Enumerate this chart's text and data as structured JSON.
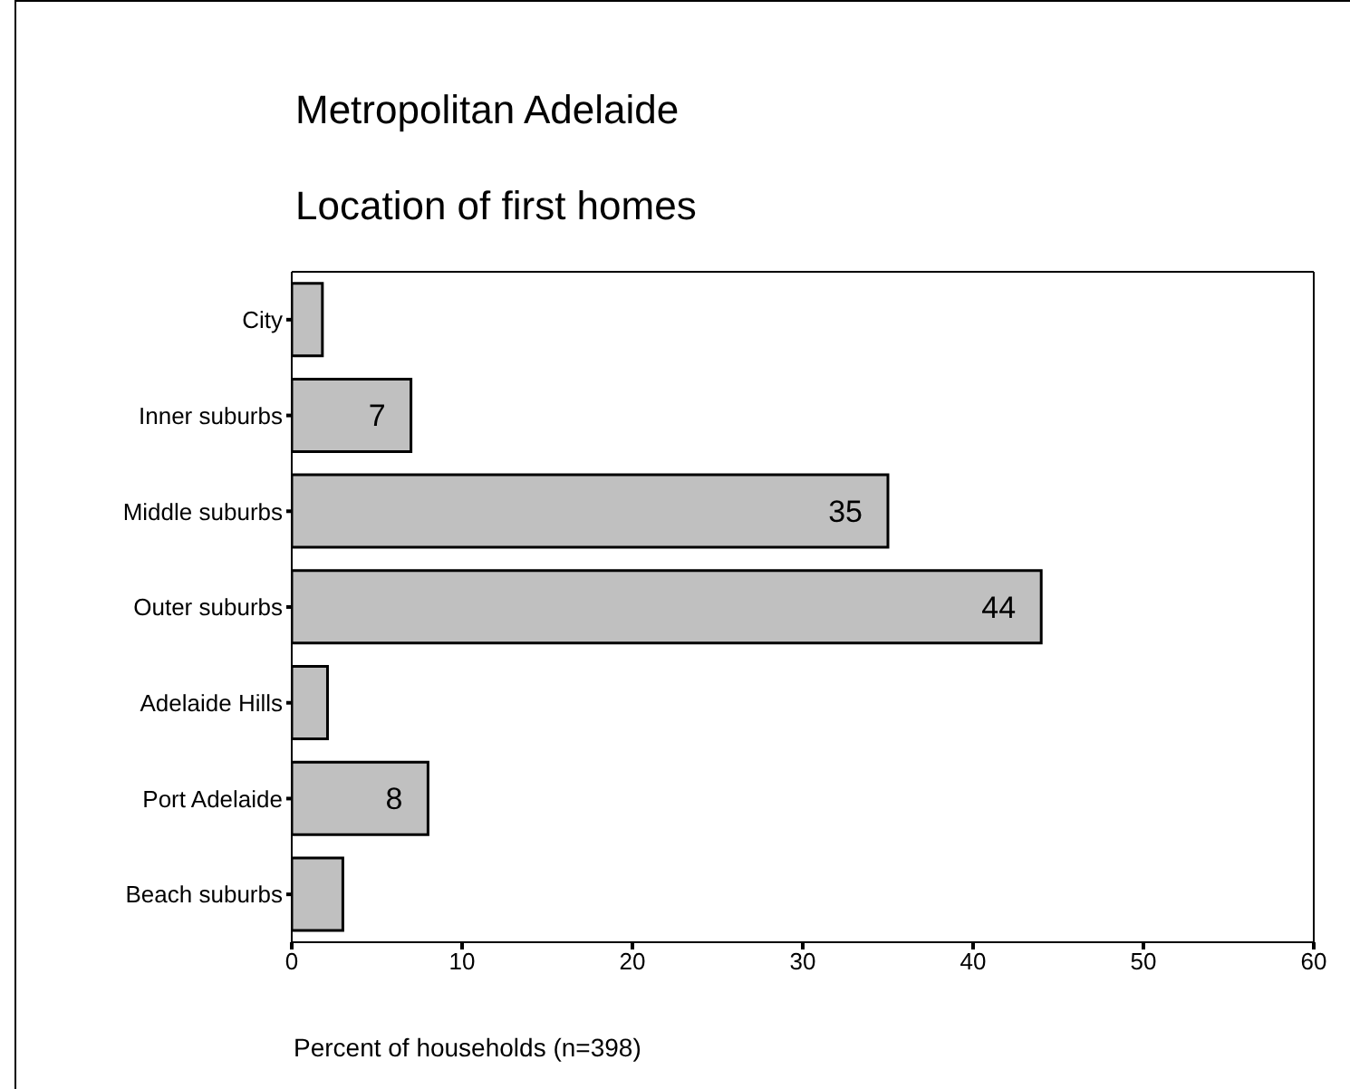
{
  "chart_data": {
    "type": "bar",
    "title": "Metropolitan Adelaide",
    "subtitle": "Location of first homes",
    "orientation": "horizontal",
    "categories": [
      "City",
      "Inner suburbs",
      "Middle suburbs",
      "Outer suburbs",
      "Adelaide Hills",
      "Port Adelaide",
      "Beach suburbs"
    ],
    "values": [
      1.8,
      7,
      35,
      44,
      2.1,
      8,
      3.0
    ],
    "value_labels": [
      null,
      "7",
      "35",
      "44",
      null,
      "8",
      null
    ],
    "color": "#c0c0c0",
    "xlim": [
      0,
      60
    ],
    "xticks": [
      0,
      10,
      20,
      30,
      40,
      50,
      60
    ],
    "xlabel": "Percent of households (n=398)",
    "grid": false
  }
}
